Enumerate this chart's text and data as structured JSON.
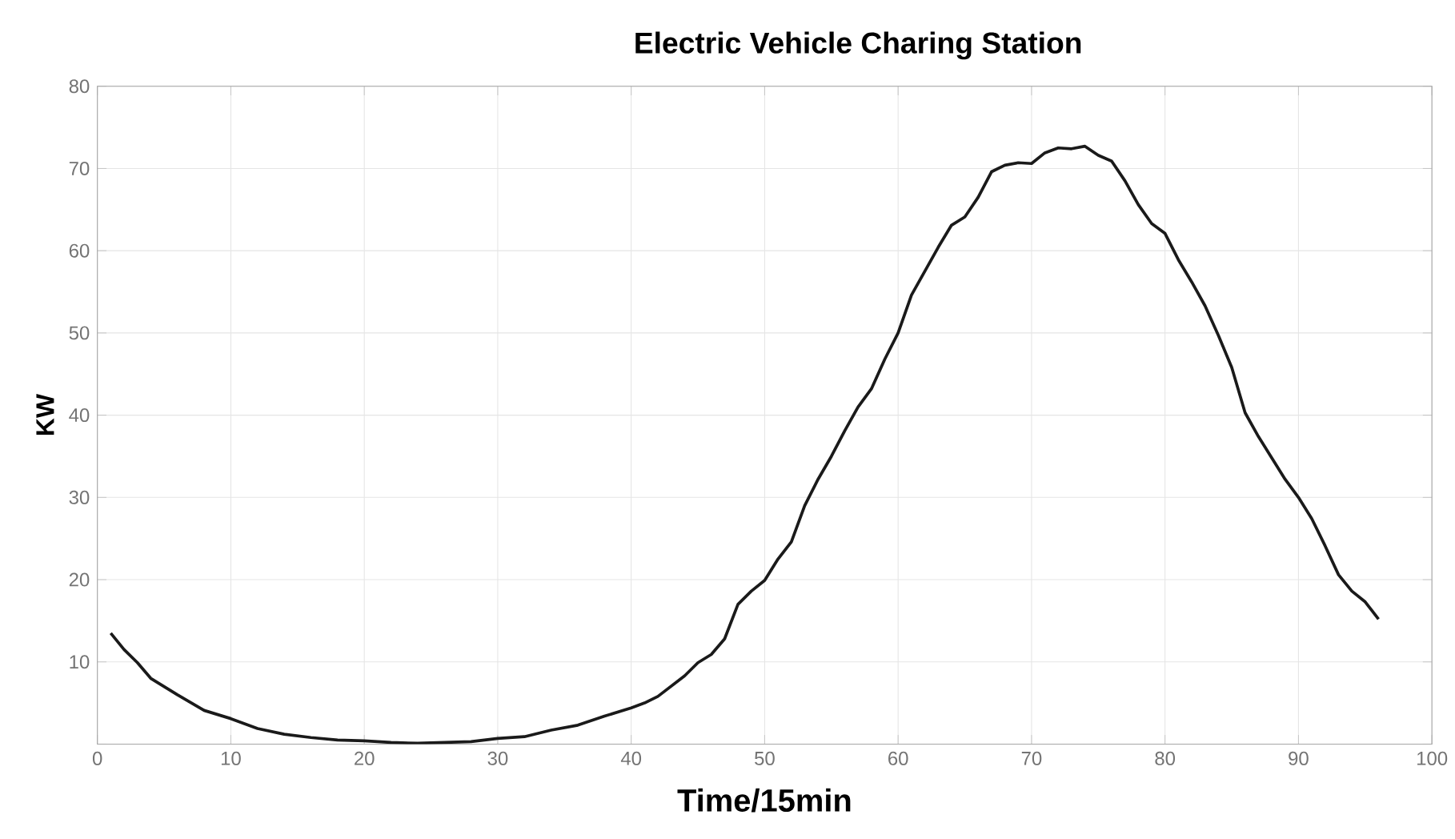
{
  "chart_data": {
    "type": "line",
    "title": "Electric Vehicle Charing Station",
    "xlabel": "Time/15min",
    "ylabel": "KW",
    "x": [
      1,
      2,
      3,
      4,
      5,
      6,
      8,
      10,
      12,
      14,
      16,
      18,
      20,
      22,
      24,
      26,
      28,
      30,
      32,
      34,
      36,
      38,
      40,
      41,
      42,
      44,
      45,
      46,
      47,
      48,
      49,
      50,
      51,
      52,
      53,
      54,
      55,
      56,
      57,
      58,
      59,
      60,
      61,
      62,
      63,
      64,
      65,
      66,
      67,
      68,
      69,
      70,
      71,
      72,
      73,
      74,
      75,
      76,
      77,
      78,
      79,
      80,
      81,
      82,
      83,
      84,
      85,
      86,
      87,
      88,
      89,
      90,
      91,
      92,
      93,
      94,
      95,
      96
    ],
    "series": [
      {
        "color": "#1a1a1a",
        "values": [
          13.5,
          11.5,
          9.9,
          8.0,
          7.0,
          6.0,
          4.1,
          3.1,
          1.9,
          1.2,
          0.8,
          0.5,
          0.4,
          0.2,
          0.1,
          0.2,
          0.3,
          0.7,
          0.9,
          1.7,
          2.3,
          3.4,
          4.4,
          5.0,
          5.8,
          8.3,
          9.9,
          10.9,
          12.8,
          17.0,
          18.6,
          19.9,
          22.5,
          24.6,
          29.0,
          32.2,
          35.0,
          38.1,
          41.0,
          43.2,
          46.8,
          50.0,
          54.6,
          57.5,
          60.4,
          63.1,
          64.1,
          66.5,
          69.6,
          70.4,
          70.7,
          70.6,
          71.9,
          72.5,
          72.4,
          72.7,
          71.6,
          70.9,
          68.5,
          65.6,
          63.3,
          62.1,
          58.9,
          56.2,
          53.3,
          49.7,
          45.8,
          40.3,
          37.4,
          34.8,
          32.2,
          30.0,
          27.4,
          24.1,
          20.6,
          18.6,
          17.3,
          15.2
        ]
      }
    ],
    "xlim": [
      0,
      100
    ],
    "ylim": [
      0,
      80
    ],
    "xticks": [
      0,
      10,
      20,
      30,
      40,
      50,
      60,
      70,
      80,
      90,
      100
    ],
    "yticks": [
      {
        "value": 0,
        "label": null
      },
      10,
      20,
      30,
      40,
      50,
      60,
      70,
      80
    ],
    "grid": true,
    "marker": "none",
    "line_style": "solid"
  }
}
